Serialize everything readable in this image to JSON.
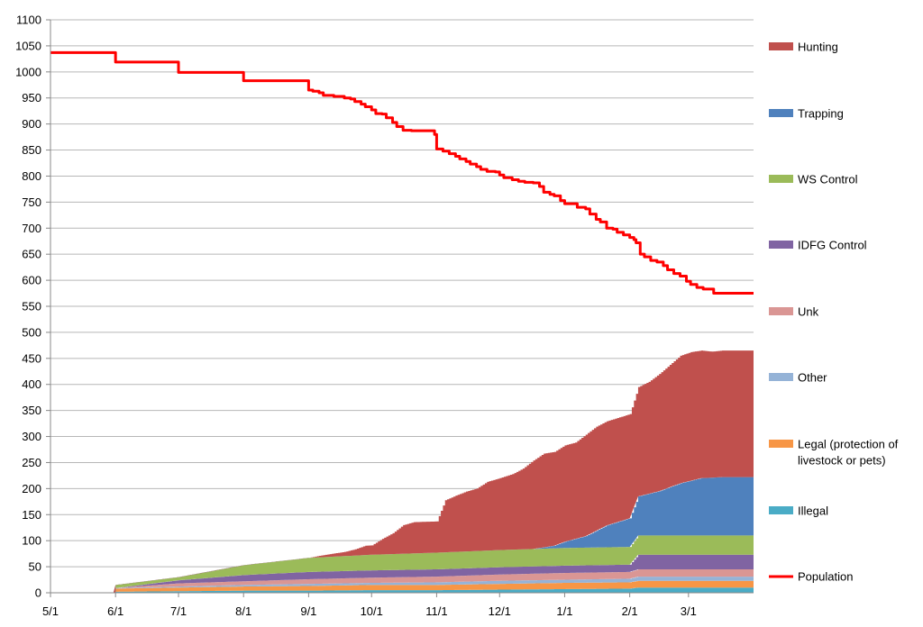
{
  "chart_data": {
    "type": "area",
    "title": "",
    "xlabel": "",
    "ylabel": "",
    "ylim": [
      0,
      1100
    ],
    "y_ticks": [
      "0",
      "50",
      "100",
      "150",
      "200",
      "250",
      "300",
      "350",
      "400",
      "450",
      "500",
      "550",
      "600",
      "650",
      "700",
      "750",
      "800",
      "850",
      "900",
      "950",
      "1000",
      "1050",
      "1100"
    ],
    "x_ticks": [
      "5/1",
      "6/1",
      "7/1",
      "8/1",
      "9/1",
      "10/1",
      "11/1",
      "12/1",
      "1/1",
      "2/1",
      "3/1"
    ],
    "x_note": "x values are days counted from 5/1 (5/1=0, 6/1=31, 7/1=61, 8/1=92, 9/1=123, 10/1=153, 11/1=184, 12/1=214, 1/1=245, 2/1=276, 3/1=304)",
    "x_end": 335,
    "grid": "horizontal",
    "legend_position": "right",
    "stacked_series": [
      {
        "name": "Illegal",
        "color": "#4aacc6",
        "points": [
          [
            0,
            0
          ],
          [
            30,
            0
          ],
          [
            31,
            2
          ],
          [
            61,
            3
          ],
          [
            92,
            4
          ],
          [
            123,
            4
          ],
          [
            153,
            5
          ],
          [
            184,
            5
          ],
          [
            214,
            6
          ],
          [
            245,
            7
          ],
          [
            276,
            8
          ],
          [
            280,
            10
          ],
          [
            335,
            10
          ]
        ]
      },
      {
        "name": "Legal (protection of livestock or pets)",
        "color": "#f79646",
        "points": [
          [
            0,
            0
          ],
          [
            30,
            0
          ],
          [
            31,
            6
          ],
          [
            61,
            7
          ],
          [
            92,
            8
          ],
          [
            123,
            9
          ],
          [
            153,
            10
          ],
          [
            184,
            10
          ],
          [
            214,
            11
          ],
          [
            245,
            12
          ],
          [
            276,
            12
          ],
          [
            280,
            13
          ],
          [
            335,
            13
          ]
        ]
      },
      {
        "name": "Other",
        "color": "#95b3d7",
        "points": [
          [
            0,
            0
          ],
          [
            30,
            0
          ],
          [
            31,
            1
          ],
          [
            61,
            2
          ],
          [
            92,
            3
          ],
          [
            123,
            4
          ],
          [
            153,
            4
          ],
          [
            184,
            5
          ],
          [
            214,
            6
          ],
          [
            245,
            6
          ],
          [
            276,
            7
          ],
          [
            280,
            8
          ],
          [
            335,
            8
          ]
        ]
      },
      {
        "name": "Unk",
        "color": "#da9694",
        "points": [
          [
            0,
            0
          ],
          [
            30,
            0
          ],
          [
            31,
            0
          ],
          [
            61,
            6
          ],
          [
            92,
            7
          ],
          [
            123,
            9
          ],
          [
            153,
            10
          ],
          [
            184,
            11
          ],
          [
            214,
            12
          ],
          [
            245,
            13
          ],
          [
            276,
            13
          ],
          [
            280,
            14
          ],
          [
            335,
            14
          ]
        ]
      },
      {
        "name": "IDFG Control",
        "color": "#8064a2",
        "points": [
          [
            0,
            0
          ],
          [
            30,
            0
          ],
          [
            31,
            0
          ],
          [
            61,
            6
          ],
          [
            92,
            12
          ],
          [
            123,
            14
          ],
          [
            153,
            14
          ],
          [
            184,
            14
          ],
          [
            214,
            14
          ],
          [
            245,
            14
          ],
          [
            276,
            14
          ],
          [
            280,
            28
          ],
          [
            335,
            28
          ]
        ]
      },
      {
        "name": "WS Control",
        "color": "#9bbb59",
        "points": [
          [
            0,
            0
          ],
          [
            30,
            0
          ],
          [
            31,
            6
          ],
          [
            61,
            6
          ],
          [
            92,
            19
          ],
          [
            123,
            27
          ],
          [
            153,
            30
          ],
          [
            184,
            32
          ],
          [
            214,
            33
          ],
          [
            245,
            34
          ],
          [
            276,
            34
          ],
          [
            280,
            37
          ],
          [
            335,
            37
          ]
        ]
      },
      {
        "name": "Trapping",
        "color": "#4f81bd",
        "points": [
          [
            0,
            0
          ],
          [
            230,
            0
          ],
          [
            240,
            5
          ],
          [
            245,
            12
          ],
          [
            255,
            22
          ],
          [
            265,
            42
          ],
          [
            276,
            55
          ],
          [
            280,
            75
          ],
          [
            290,
            85
          ],
          [
            300,
            100
          ],
          [
            310,
            110
          ],
          [
            320,
            112
          ],
          [
            335,
            112
          ]
        ]
      },
      {
        "name": "Hunting",
        "color": "#c0504d",
        "points": [
          [
            0,
            0
          ],
          [
            123,
            0
          ],
          [
            128,
            3
          ],
          [
            135,
            6
          ],
          [
            140,
            8
          ],
          [
            145,
            12
          ],
          [
            150,
            18
          ],
          [
            153,
            18
          ],
          [
            158,
            30
          ],
          [
            163,
            40
          ],
          [
            168,
            55
          ],
          [
            173,
            60
          ],
          [
            180,
            60
          ],
          [
            184,
            60
          ],
          [
            188,
            100
          ],
          [
            193,
            108
          ],
          [
            198,
            115
          ],
          [
            203,
            120
          ],
          [
            208,
            132
          ],
          [
            214,
            138
          ],
          [
            220,
            145
          ],
          [
            225,
            155
          ],
          [
            230,
            170
          ],
          [
            235,
            180
          ],
          [
            240,
            180
          ],
          [
            245,
            185
          ],
          [
            250,
            185
          ],
          [
            255,
            195
          ],
          [
            260,
            200
          ],
          [
            265,
            200
          ],
          [
            270,
            200
          ],
          [
            276,
            200
          ],
          [
            280,
            210
          ],
          [
            285,
            215
          ],
          [
            290,
            225
          ],
          [
            295,
            235
          ],
          [
            300,
            245
          ],
          [
            305,
            247
          ],
          [
            310,
            245
          ],
          [
            315,
            242
          ],
          [
            320,
            243
          ],
          [
            325,
            243
          ],
          [
            335,
            243
          ]
        ]
      }
    ],
    "line_series": {
      "name": "Population",
      "color": "#ff0000",
      "points": [
        [
          0,
          1037
        ],
        [
          30,
          1037
        ],
        [
          31,
          1019
        ],
        [
          60,
          1019
        ],
        [
          61,
          999
        ],
        [
          91,
          999
        ],
        [
          92,
          983
        ],
        [
          122,
          983
        ],
        [
          123,
          965
        ],
        [
          125,
          963
        ],
        [
          128,
          960
        ],
        [
          130,
          955
        ],
        [
          135,
          953
        ],
        [
          140,
          950
        ],
        [
          143,
          948
        ],
        [
          145,
          943
        ],
        [
          148,
          938
        ],
        [
          150,
          933
        ],
        [
          153,
          927
        ],
        [
          155,
          920
        ],
        [
          158,
          919
        ],
        [
          160,
          912
        ],
        [
          163,
          903
        ],
        [
          165,
          895
        ],
        [
          168,
          888
        ],
        [
          172,
          887
        ],
        [
          178,
          887
        ],
        [
          182,
          887
        ],
        [
          183,
          880
        ],
        [
          184,
          852
        ],
        [
          187,
          848
        ],
        [
          190,
          843
        ],
        [
          193,
          838
        ],
        [
          195,
          833
        ],
        [
          198,
          828
        ],
        [
          200,
          823
        ],
        [
          203,
          818
        ],
        [
          205,
          813
        ],
        [
          208,
          809
        ],
        [
          212,
          808
        ],
        [
          214,
          802
        ],
        [
          216,
          797
        ],
        [
          220,
          793
        ],
        [
          223,
          790
        ],
        [
          226,
          788
        ],
        [
          230,
          787
        ],
        [
          233,
          780
        ],
        [
          235,
          769
        ],
        [
          238,
          765
        ],
        [
          240,
          762
        ],
        [
          243,
          753
        ],
        [
          245,
          747
        ],
        [
          249,
          747
        ],
        [
          251,
          740
        ],
        [
          255,
          737
        ],
        [
          257,
          727
        ],
        [
          260,
          717
        ],
        [
          262,
          712
        ],
        [
          265,
          700
        ],
        [
          268,
          698
        ],
        [
          270,
          692
        ],
        [
          273,
          687
        ],
        [
          276,
          682
        ],
        [
          278,
          678
        ],
        [
          279,
          672
        ],
        [
          281,
          650
        ],
        [
          283,
          645
        ],
        [
          286,
          638
        ],
        [
          289,
          635
        ],
        [
          292,
          628
        ],
        [
          294,
          620
        ],
        [
          297,
          613
        ],
        [
          300,
          608
        ],
        [
          303,
          598
        ],
        [
          305,
          592
        ],
        [
          308,
          586
        ],
        [
          311,
          583
        ],
        [
          314,
          583
        ],
        [
          316,
          575
        ],
        [
          318,
          575
        ],
        [
          335,
          575
        ]
      ]
    }
  }
}
